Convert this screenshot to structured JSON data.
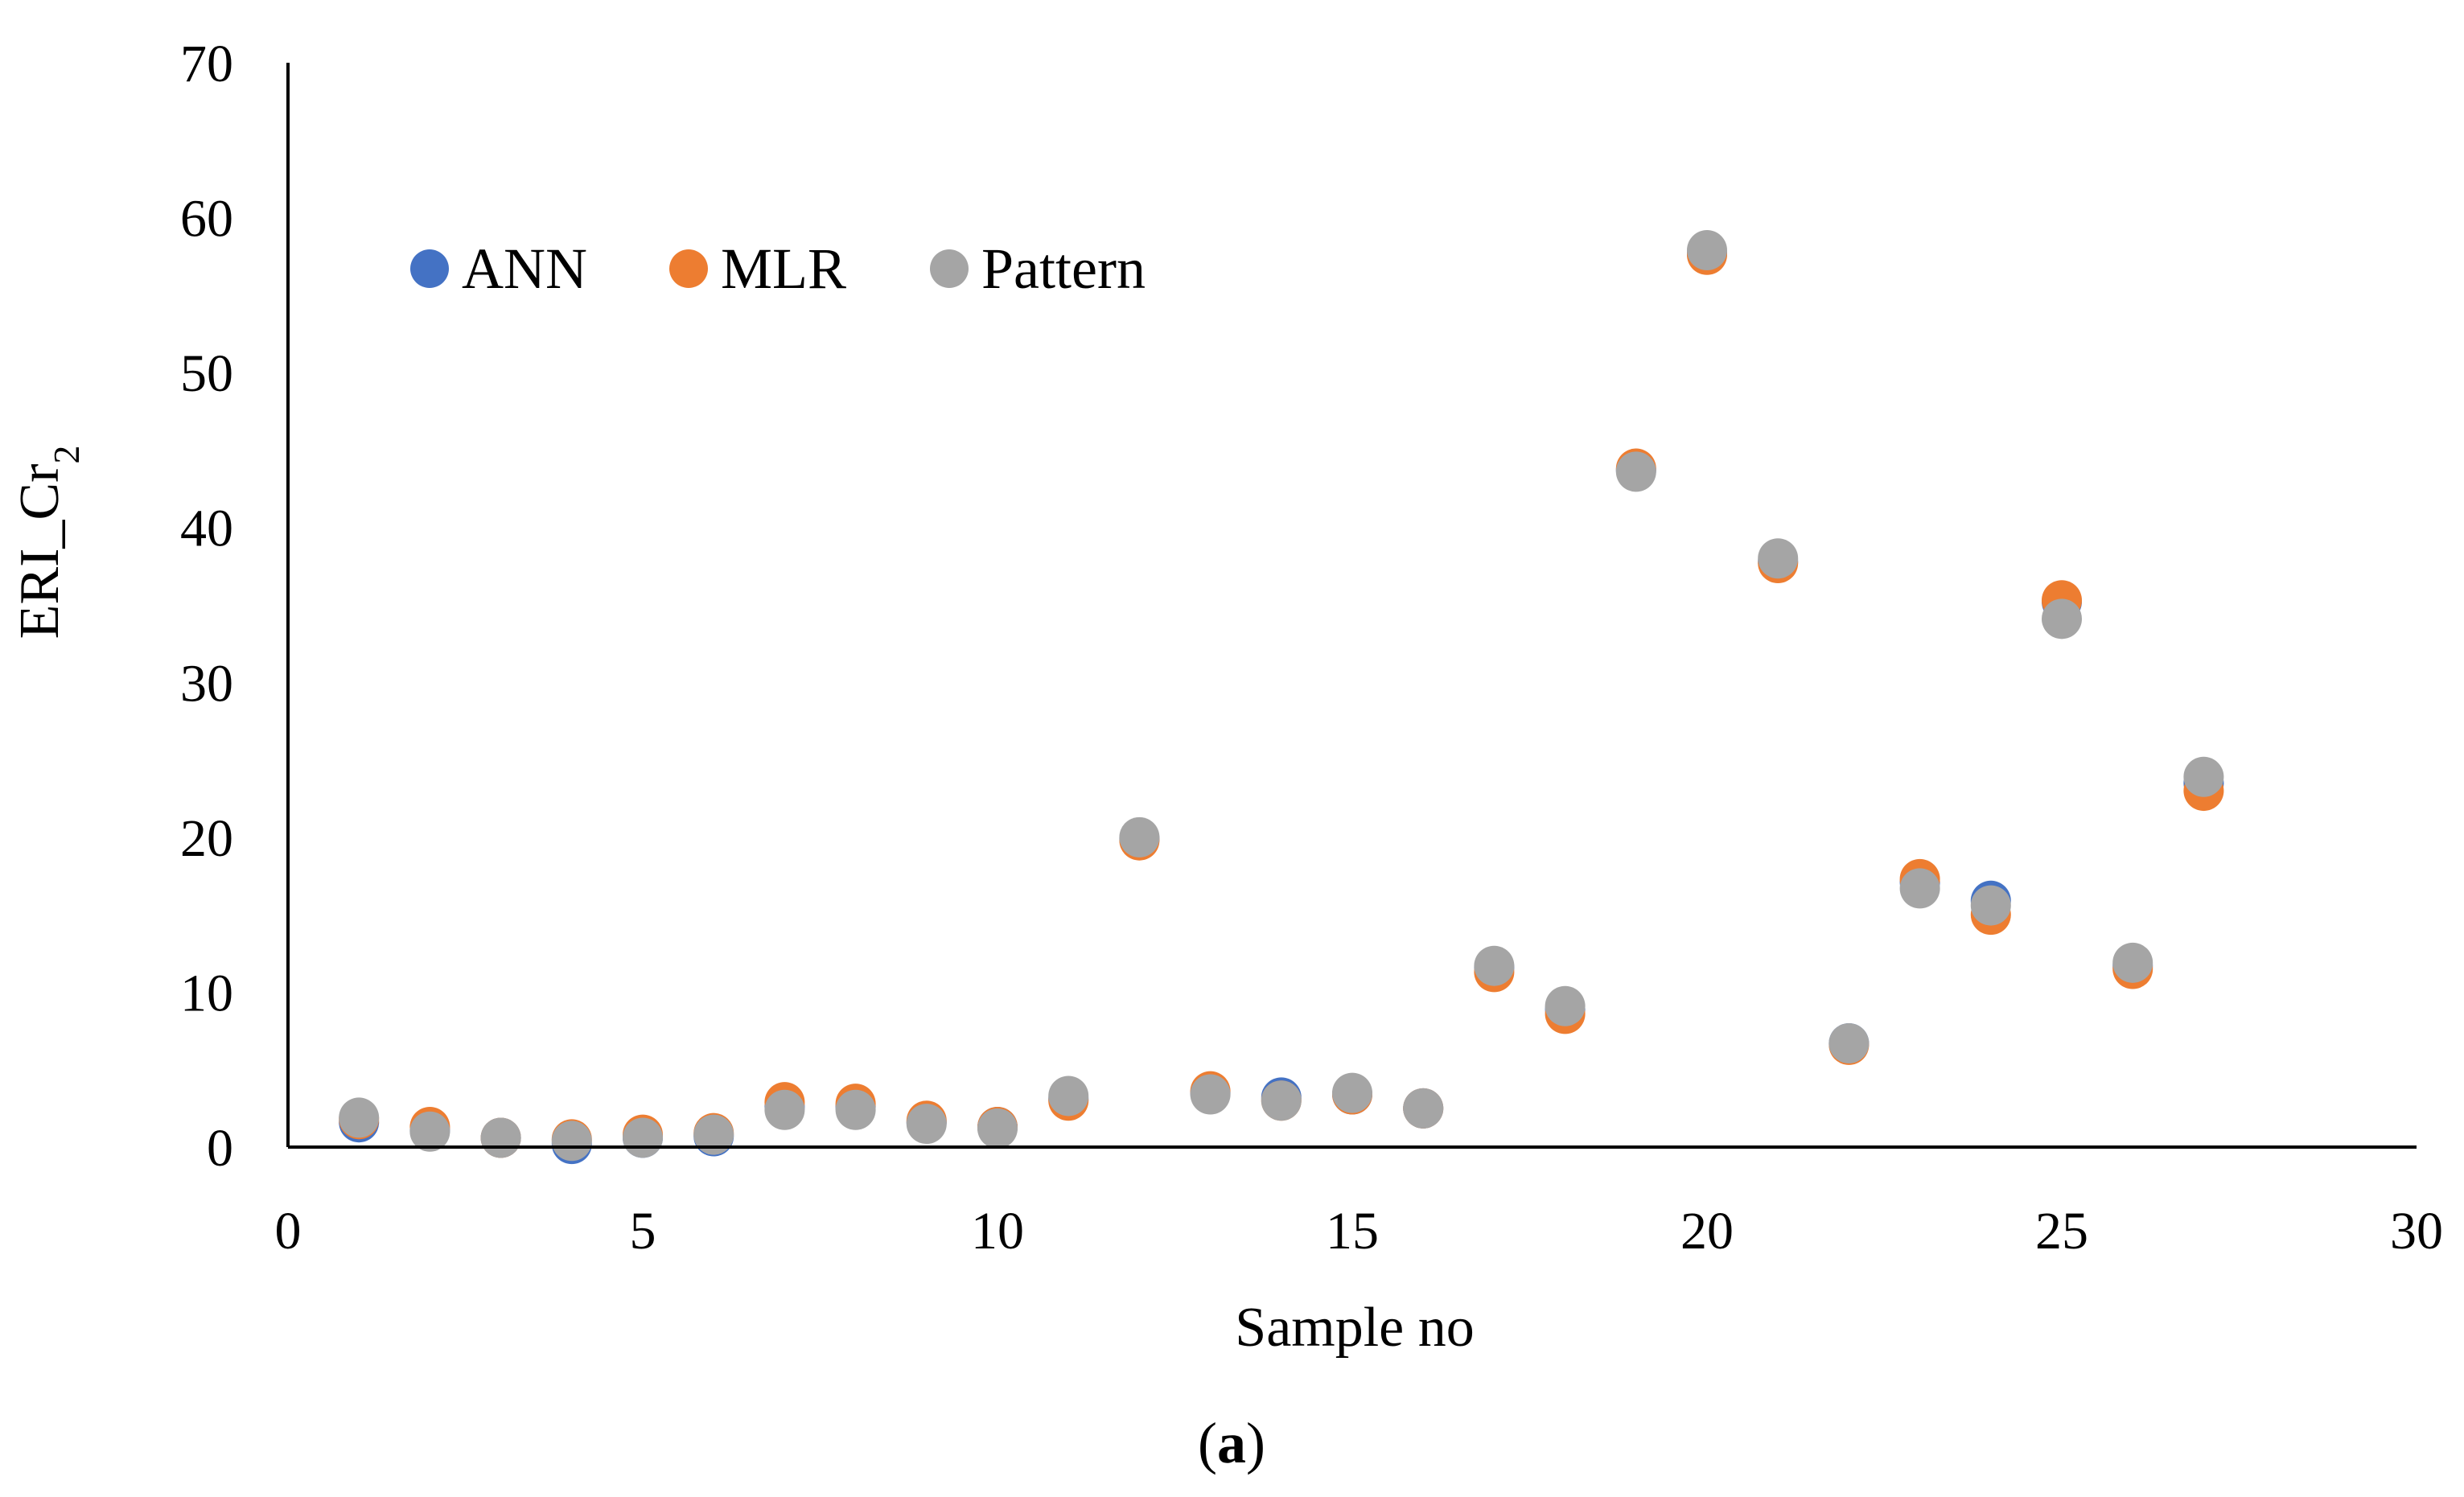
{
  "chart_data": {
    "type": "scatter",
    "title": "",
    "xlabel": "Sample no",
    "ylabel_main": "ERI_Cr",
    "ylabel_subscript": "2",
    "xlim": [
      0,
      30
    ],
    "ylim": [
      0,
      70
    ],
    "xticks": [
      0,
      5,
      10,
      15,
      20,
      25,
      30
    ],
    "yticks": [
      0,
      10,
      20,
      30,
      40,
      50,
      60,
      70
    ],
    "grid": false,
    "legend_position": "upper-left",
    "x": [
      1,
      2,
      3,
      4,
      5,
      6,
      7,
      8,
      9,
      10,
      11,
      12,
      13,
      14,
      15,
      16,
      17,
      18,
      19,
      20,
      21,
      22,
      23,
      24,
      25,
      26,
      27
    ],
    "series": [
      {
        "name": "ANN",
        "color": "#4472C4",
        "values": [
          1.6,
          1.1,
          0.6,
          0.2,
          0.6,
          0.7,
          2.6,
          2.6,
          1.6,
          1.3,
          3.1,
          19.9,
          3.5,
          3.2,
          3.4,
          2.5,
          11.6,
          8.9,
          43.7,
          57.7,
          37.8,
          6.7,
          17.1,
          15.9,
          35.2,
          11.7,
          23.5
        ]
      },
      {
        "name": "MLR",
        "color": "#ED7D31",
        "values": [
          1.8,
          1.3,
          0.6,
          0.5,
          0.8,
          0.9,
          2.9,
          2.8,
          1.7,
          1.3,
          3.0,
          19.8,
          3.6,
          3.0,
          3.4,
          2.5,
          11.3,
          8.6,
          43.8,
          57.6,
          37.7,
          6.6,
          17.3,
          15.0,
          35.3,
          11.5,
          23.0
        ]
      },
      {
        "name": "Pattern",
        "color": "#A5A5A5",
        "values": [
          1.9,
          1.0,
          0.6,
          0.4,
          0.6,
          0.8,
          2.4,
          2.4,
          1.5,
          1.2,
          3.3,
          20.0,
          3.4,
          3.0,
          3.5,
          2.5,
          11.7,
          9.1,
          43.6,
          57.9,
          38.0,
          6.7,
          16.7,
          15.6,
          34.1,
          11.9,
          23.9
        ]
      }
    ]
  },
  "caption": {
    "open": "(",
    "bold": "a",
    "close": ")"
  }
}
